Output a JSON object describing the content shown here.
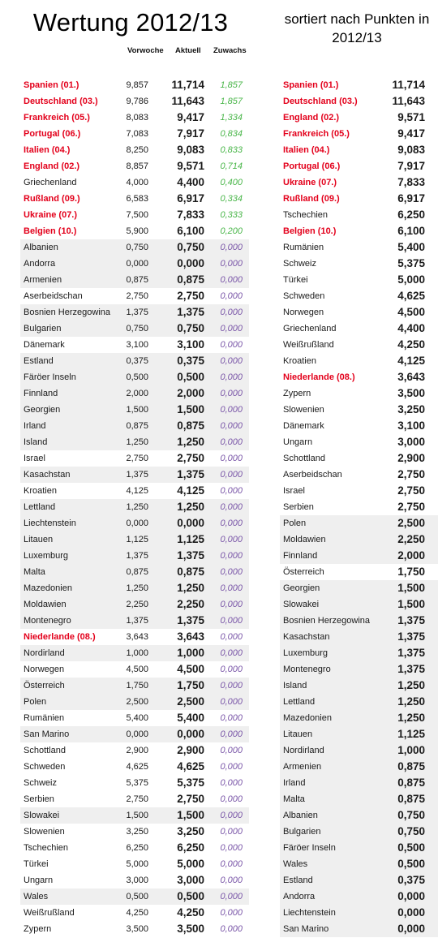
{
  "title": "Wertung 2012/13",
  "subtitle": "sortiert nach Punkten in 2012/13",
  "headers": {
    "prev": "Vorwoche",
    "current": "Aktuell",
    "gain": "Zuwachs"
  },
  "left_rows": [
    {
      "name": "Spanien (01.)",
      "prev": "9,857",
      "cur": "11,714",
      "gain": "1,857",
      "red": true,
      "pos": true,
      "shaded": false
    },
    {
      "name": "Deutschland (03.)",
      "prev": "9,786",
      "cur": "11,643",
      "gain": "1,857",
      "red": true,
      "pos": true,
      "shaded": false
    },
    {
      "name": "Frankreich (05.)",
      "prev": "8,083",
      "cur": "9,417",
      "gain": "1,334",
      "red": true,
      "pos": true,
      "shaded": false
    },
    {
      "name": "Portugal (06.)",
      "prev": "7,083",
      "cur": "7,917",
      "gain": "0,834",
      "red": true,
      "pos": true,
      "shaded": false
    },
    {
      "name": "Italien (04.)",
      "prev": "8,250",
      "cur": "9,083",
      "gain": "0,833",
      "red": true,
      "pos": true,
      "shaded": false
    },
    {
      "name": "England (02.)",
      "prev": "8,857",
      "cur": "9,571",
      "gain": "0,714",
      "red": true,
      "pos": true,
      "shaded": false
    },
    {
      "name": "Griechenland",
      "prev": "4,000",
      "cur": "4,400",
      "gain": "0,400",
      "red": false,
      "pos": true,
      "shaded": false
    },
    {
      "name": "Rußland (09.)",
      "prev": "6,583",
      "cur": "6,917",
      "gain": "0,334",
      "red": true,
      "pos": true,
      "shaded": false
    },
    {
      "name": "Ukraine (07.)",
      "prev": "7,500",
      "cur": "7,833",
      "gain": "0,333",
      "red": true,
      "pos": true,
      "shaded": false
    },
    {
      "name": "Belgien (10.)",
      "prev": "5,900",
      "cur": "6,100",
      "gain": "0,200",
      "red": true,
      "pos": true,
      "shaded": false
    },
    {
      "name": "Albanien",
      "prev": "0,750",
      "cur": "0,750",
      "gain": "0,000",
      "red": false,
      "pos": false,
      "shaded": true
    },
    {
      "name": "Andorra",
      "prev": "0,000",
      "cur": "0,000",
      "gain": "0,000",
      "red": false,
      "pos": false,
      "shaded": true
    },
    {
      "name": "Armenien",
      "prev": "0,875",
      "cur": "0,875",
      "gain": "0,000",
      "red": false,
      "pos": false,
      "shaded": true
    },
    {
      "name": "Aserbeidschan",
      "prev": "2,750",
      "cur": "2,750",
      "gain": "0,000",
      "red": false,
      "pos": false,
      "shaded": false
    },
    {
      "name": "Bosnien Herzegowina",
      "prev": "1,375",
      "cur": "1,375",
      "gain": "0,000",
      "red": false,
      "pos": false,
      "shaded": true
    },
    {
      "name": "Bulgarien",
      "prev": "0,750",
      "cur": "0,750",
      "gain": "0,000",
      "red": false,
      "pos": false,
      "shaded": true
    },
    {
      "name": "Dänemark",
      "prev": "3,100",
      "cur": "3,100",
      "gain": "0,000",
      "red": false,
      "pos": false,
      "shaded": false
    },
    {
      "name": "Estland",
      "prev": "0,375",
      "cur": "0,375",
      "gain": "0,000",
      "red": false,
      "pos": false,
      "shaded": true
    },
    {
      "name": "Färöer Inseln",
      "prev": "0,500",
      "cur": "0,500",
      "gain": "0,000",
      "red": false,
      "pos": false,
      "shaded": true
    },
    {
      "name": "Finnland",
      "prev": "2,000",
      "cur": "2,000",
      "gain": "0,000",
      "red": false,
      "pos": false,
      "shaded": true
    },
    {
      "name": "Georgien",
      "prev": "1,500",
      "cur": "1,500",
      "gain": "0,000",
      "red": false,
      "pos": false,
      "shaded": true
    },
    {
      "name": "Irland",
      "prev": "0,875",
      "cur": "0,875",
      "gain": "0,000",
      "red": false,
      "pos": false,
      "shaded": true
    },
    {
      "name": "Island",
      "prev": "1,250",
      "cur": "1,250",
      "gain": "0,000",
      "red": false,
      "pos": false,
      "shaded": true
    },
    {
      "name": "Israel",
      "prev": "2,750",
      "cur": "2,750",
      "gain": "0,000",
      "red": false,
      "pos": false,
      "shaded": false
    },
    {
      "name": "Kasachstan",
      "prev": "1,375",
      "cur": "1,375",
      "gain": "0,000",
      "red": false,
      "pos": false,
      "shaded": true
    },
    {
      "name": "Kroatien",
      "prev": "4,125",
      "cur": "4,125",
      "gain": "0,000",
      "red": false,
      "pos": false,
      "shaded": false
    },
    {
      "name": "Lettland",
      "prev": "1,250",
      "cur": "1,250",
      "gain": "0,000",
      "red": false,
      "pos": false,
      "shaded": true
    },
    {
      "name": "Liechtenstein",
      "prev": "0,000",
      "cur": "0,000",
      "gain": "0,000",
      "red": false,
      "pos": false,
      "shaded": true
    },
    {
      "name": "Litauen",
      "prev": "1,125",
      "cur": "1,125",
      "gain": "0,000",
      "red": false,
      "pos": false,
      "shaded": true
    },
    {
      "name": "Luxemburg",
      "prev": "1,375",
      "cur": "1,375",
      "gain": "0,000",
      "red": false,
      "pos": false,
      "shaded": true
    },
    {
      "name": "Malta",
      "prev": "0,875",
      "cur": "0,875",
      "gain": "0,000",
      "red": false,
      "pos": false,
      "shaded": true
    },
    {
      "name": "Mazedonien",
      "prev": "1,250",
      "cur": "1,250",
      "gain": "0,000",
      "red": false,
      "pos": false,
      "shaded": true
    },
    {
      "name": "Moldawien",
      "prev": "2,250",
      "cur": "2,250",
      "gain": "0,000",
      "red": false,
      "pos": false,
      "shaded": true
    },
    {
      "name": "Montenegro",
      "prev": "1,375",
      "cur": "1,375",
      "gain": "0,000",
      "red": false,
      "pos": false,
      "shaded": true
    },
    {
      "name": "Niederlande (08.)",
      "prev": "3,643",
      "cur": "3,643",
      "gain": "0,000",
      "red": true,
      "pos": false,
      "shaded": false
    },
    {
      "name": "Nordirland",
      "prev": "1,000",
      "cur": "1,000",
      "gain": "0,000",
      "red": false,
      "pos": false,
      "shaded": true
    },
    {
      "name": "Norwegen",
      "prev": "4,500",
      "cur": "4,500",
      "gain": "0,000",
      "red": false,
      "pos": false,
      "shaded": false
    },
    {
      "name": "Österreich",
      "prev": "1,750",
      "cur": "1,750",
      "gain": "0,000",
      "red": false,
      "pos": false,
      "shaded": true
    },
    {
      "name": "Polen",
      "prev": "2,500",
      "cur": "2,500",
      "gain": "0,000",
      "red": false,
      "pos": false,
      "shaded": true
    },
    {
      "name": "Rumänien",
      "prev": "5,400",
      "cur": "5,400",
      "gain": "0,000",
      "red": false,
      "pos": false,
      "shaded": false
    },
    {
      "name": "San Marino",
      "prev": "0,000",
      "cur": "0,000",
      "gain": "0,000",
      "red": false,
      "pos": false,
      "shaded": true
    },
    {
      "name": "Schottland",
      "prev": "2,900",
      "cur": "2,900",
      "gain": "0,000",
      "red": false,
      "pos": false,
      "shaded": false
    },
    {
      "name": "Schweden",
      "prev": "4,625",
      "cur": "4,625",
      "gain": "0,000",
      "red": false,
      "pos": false,
      "shaded": false
    },
    {
      "name": "Schweiz",
      "prev": "5,375",
      "cur": "5,375",
      "gain": "0,000",
      "red": false,
      "pos": false,
      "shaded": false
    },
    {
      "name": "Serbien",
      "prev": "2,750",
      "cur": "2,750",
      "gain": "0,000",
      "red": false,
      "pos": false,
      "shaded": false
    },
    {
      "name": "Slowakei",
      "prev": "1,500",
      "cur": "1,500",
      "gain": "0,000",
      "red": false,
      "pos": false,
      "shaded": true
    },
    {
      "name": "Slowenien",
      "prev": "3,250",
      "cur": "3,250",
      "gain": "0,000",
      "red": false,
      "pos": false,
      "shaded": false
    },
    {
      "name": "Tschechien",
      "prev": "6,250",
      "cur": "6,250",
      "gain": "0,000",
      "red": false,
      "pos": false,
      "shaded": false
    },
    {
      "name": "Türkei",
      "prev": "5,000",
      "cur": "5,000",
      "gain": "0,000",
      "red": false,
      "pos": false,
      "shaded": false
    },
    {
      "name": "Ungarn",
      "prev": "3,000",
      "cur": "3,000",
      "gain": "0,000",
      "red": false,
      "pos": false,
      "shaded": false
    },
    {
      "name": "Wales",
      "prev": "0,500",
      "cur": "0,500",
      "gain": "0,000",
      "red": false,
      "pos": false,
      "shaded": true
    },
    {
      "name": "Weißrußland",
      "prev": "4,250",
      "cur": "4,250",
      "gain": "0,000",
      "red": false,
      "pos": false,
      "shaded": false
    },
    {
      "name": "Zypern",
      "prev": "3,500",
      "cur": "3,500",
      "gain": "0,000",
      "red": false,
      "pos": false,
      "shaded": false
    }
  ],
  "right_rows": [
    {
      "name": "Spanien (01.)",
      "cur": "11,714",
      "red": true,
      "shaded": false
    },
    {
      "name": "Deutschland (03.)",
      "cur": "11,643",
      "red": true,
      "shaded": false
    },
    {
      "name": "England (02.)",
      "cur": "9,571",
      "red": true,
      "shaded": false
    },
    {
      "name": "Frankreich (05.)",
      "cur": "9,417",
      "red": true,
      "shaded": false
    },
    {
      "name": "Italien (04.)",
      "cur": "9,083",
      "red": true,
      "shaded": false
    },
    {
      "name": "Portugal (06.)",
      "cur": "7,917",
      "red": true,
      "shaded": false
    },
    {
      "name": "Ukraine (07.)",
      "cur": "7,833",
      "red": true,
      "shaded": false
    },
    {
      "name": "Rußland (09.)",
      "cur": "6,917",
      "red": true,
      "shaded": false
    },
    {
      "name": "Tschechien",
      "cur": "6,250",
      "red": false,
      "shaded": false
    },
    {
      "name": "Belgien (10.)",
      "cur": "6,100",
      "red": true,
      "shaded": false
    },
    {
      "name": "Rumänien",
      "cur": "5,400",
      "red": false,
      "shaded": false
    },
    {
      "name": "Schweiz",
      "cur": "5,375",
      "red": false,
      "shaded": false
    },
    {
      "name": "Türkei",
      "cur": "5,000",
      "red": false,
      "shaded": false
    },
    {
      "name": "Schweden",
      "cur": "4,625",
      "red": false,
      "shaded": false
    },
    {
      "name": "Norwegen",
      "cur": "4,500",
      "red": false,
      "shaded": false
    },
    {
      "name": "Griechenland",
      "cur": "4,400",
      "red": false,
      "shaded": false
    },
    {
      "name": "Weißrußland",
      "cur": "4,250",
      "red": false,
      "shaded": false
    },
    {
      "name": "Kroatien",
      "cur": "4,125",
      "red": false,
      "shaded": false
    },
    {
      "name": "Niederlande (08.)",
      "cur": "3,643",
      "red": true,
      "shaded": false
    },
    {
      "name": "Zypern",
      "cur": "3,500",
      "red": false,
      "shaded": false
    },
    {
      "name": "Slowenien",
      "cur": "3,250",
      "red": false,
      "shaded": false
    },
    {
      "name": "Dänemark",
      "cur": "3,100",
      "red": false,
      "shaded": false
    },
    {
      "name": "Ungarn",
      "cur": "3,000",
      "red": false,
      "shaded": false
    },
    {
      "name": "Schottland",
      "cur": "2,900",
      "red": false,
      "shaded": false
    },
    {
      "name": "Aserbeidschan",
      "cur": "2,750",
      "red": false,
      "shaded": false
    },
    {
      "name": "Israel",
      "cur": "2,750",
      "red": false,
      "shaded": false
    },
    {
      "name": "Serbien",
      "cur": "2,750",
      "red": false,
      "shaded": false
    },
    {
      "name": "Polen",
      "cur": "2,500",
      "red": false,
      "shaded": true
    },
    {
      "name": "Moldawien",
      "cur": "2,250",
      "red": false,
      "shaded": true
    },
    {
      "name": "Finnland",
      "cur": "2,000",
      "red": false,
      "shaded": true
    },
    {
      "name": "Österreich",
      "cur": "1,750",
      "red": false,
      "shaded": false
    },
    {
      "name": "Georgien",
      "cur": "1,500",
      "red": false,
      "shaded": true
    },
    {
      "name": "Slowakei",
      "cur": "1,500",
      "red": false,
      "shaded": true
    },
    {
      "name": "Bosnien Herzegowina",
      "cur": "1,375",
      "red": false,
      "shaded": true
    },
    {
      "name": "Kasachstan",
      "cur": "1,375",
      "red": false,
      "shaded": true
    },
    {
      "name": "Luxemburg",
      "cur": "1,375",
      "red": false,
      "shaded": true
    },
    {
      "name": "Montenegro",
      "cur": "1,375",
      "red": false,
      "shaded": true
    },
    {
      "name": "Island",
      "cur": "1,250",
      "red": false,
      "shaded": true
    },
    {
      "name": "Lettland",
      "cur": "1,250",
      "red": false,
      "shaded": true
    },
    {
      "name": "Mazedonien",
      "cur": "1,250",
      "red": false,
      "shaded": true
    },
    {
      "name": "Litauen",
      "cur": "1,125",
      "red": false,
      "shaded": true
    },
    {
      "name": "Nordirland",
      "cur": "1,000",
      "red": false,
      "shaded": true
    },
    {
      "name": "Armenien",
      "cur": "0,875",
      "red": false,
      "shaded": true
    },
    {
      "name": "Irland",
      "cur": "0,875",
      "red": false,
      "shaded": true
    },
    {
      "name": "Malta",
      "cur": "0,875",
      "red": false,
      "shaded": true
    },
    {
      "name": "Albanien",
      "cur": "0,750",
      "red": false,
      "shaded": true
    },
    {
      "name": "Bulgarien",
      "cur": "0,750",
      "red": false,
      "shaded": true
    },
    {
      "name": "Färöer Inseln",
      "cur": "0,500",
      "red": false,
      "shaded": true
    },
    {
      "name": "Wales",
      "cur": "0,500",
      "red": false,
      "shaded": true
    },
    {
      "name": "Estland",
      "cur": "0,375",
      "red": false,
      "shaded": true
    },
    {
      "name": "Andorra",
      "cur": "0,000",
      "red": false,
      "shaded": true
    },
    {
      "name": "Liechtenstein",
      "cur": "0,000",
      "red": false,
      "shaded": true
    },
    {
      "name": "San Marino",
      "cur": "0,000",
      "red": false,
      "shaded": true
    }
  ],
  "colors": {
    "highlight_red": "#e3001b",
    "gain_positive": "#49b649",
    "gain_zero": "#7a56a8",
    "row_shade": "#efefef"
  }
}
